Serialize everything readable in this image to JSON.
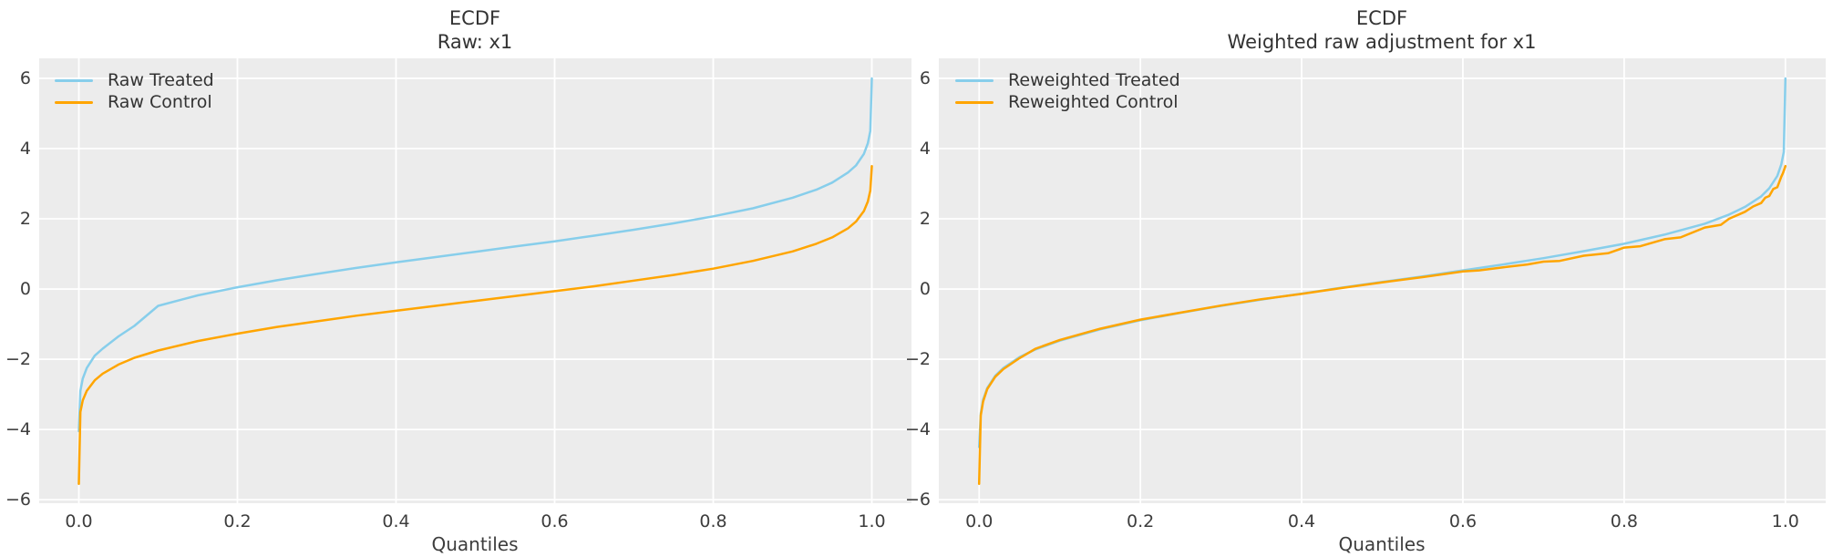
{
  "figure": {
    "background": "#ffffff",
    "plot_background": "#ececec",
    "grid_color": "#ffffff",
    "text_color": "#3d3d3d",
    "treated_color": "#87ceeb",
    "control_color": "#ffa500"
  },
  "chart_data": [
    {
      "type": "line",
      "title_line1": "ECDF",
      "title_line2": "Raw: x1",
      "xlabel": "Quantiles",
      "x_ticks": [
        {
          "label": "0.0",
          "value": 0.0
        },
        {
          "label": "0.2",
          "value": 0.2
        },
        {
          "label": "0.4",
          "value": 0.4
        },
        {
          "label": "0.6",
          "value": 0.6
        },
        {
          "label": "0.8",
          "value": 0.8
        },
        {
          "label": "1.0",
          "value": 1.0
        }
      ],
      "y_ticks": [
        {
          "label": "6",
          "value": 6
        },
        {
          "label": "4",
          "value": 4
        },
        {
          "label": "2",
          "value": 2
        },
        {
          "label": "0",
          "value": 0
        },
        {
          "label": "−2",
          "value": -2
        },
        {
          "label": "−4",
          "value": -4
        },
        {
          "label": "−6",
          "value": -6
        }
      ],
      "xlim": [
        -0.05,
        1.05
      ],
      "ylim": [
        -6.1,
        6.57
      ],
      "grid": true,
      "legend_position": "upper-left",
      "series": [
        {
          "name": "Raw Treated",
          "color": "#87ceeb",
          "points": [
            [
              0.0,
              -4.05
            ],
            [
              0.002,
              -2.9
            ],
            [
              0.005,
              -2.55
            ],
            [
              0.01,
              -2.25
            ],
            [
              0.02,
              -1.9
            ],
            [
              0.03,
              -1.7
            ],
            [
              0.05,
              -1.35
            ],
            [
              0.07,
              -1.05
            ],
            [
              0.1,
              -0.48
            ],
            [
              0.13,
              -0.3
            ],
            [
              0.15,
              -0.18
            ],
            [
              0.2,
              0.05
            ],
            [
              0.25,
              0.25
            ],
            [
              0.3,
              0.43
            ],
            [
              0.35,
              0.6
            ],
            [
              0.4,
              0.76
            ],
            [
              0.45,
              0.91
            ],
            [
              0.5,
              1.06
            ],
            [
              0.55,
              1.21
            ],
            [
              0.6,
              1.36
            ],
            [
              0.65,
              1.52
            ],
            [
              0.7,
              1.69
            ],
            [
              0.75,
              1.87
            ],
            [
              0.8,
              2.07
            ],
            [
              0.85,
              2.3
            ],
            [
              0.9,
              2.6
            ],
            [
              0.93,
              2.83
            ],
            [
              0.95,
              3.03
            ],
            [
              0.97,
              3.32
            ],
            [
              0.98,
              3.52
            ],
            [
              0.99,
              3.85
            ],
            [
              0.995,
              4.15
            ],
            [
              0.998,
              4.5
            ],
            [
              1.0,
              6.0
            ]
          ]
        },
        {
          "name": "Raw Control",
          "color": "#ffa500",
          "points": [
            [
              0.0,
              -5.55
            ],
            [
              0.002,
              -3.5
            ],
            [
              0.005,
              -3.17
            ],
            [
              0.01,
              -2.9
            ],
            [
              0.02,
              -2.6
            ],
            [
              0.03,
              -2.41
            ],
            [
              0.05,
              -2.15
            ],
            [
              0.07,
              -1.96
            ],
            [
              0.1,
              -1.75
            ],
            [
              0.15,
              -1.48
            ],
            [
              0.2,
              -1.27
            ],
            [
              0.25,
              -1.08
            ],
            [
              0.3,
              -0.92
            ],
            [
              0.35,
              -0.76
            ],
            [
              0.4,
              -0.62
            ],
            [
              0.45,
              -0.48
            ],
            [
              0.5,
              -0.34
            ],
            [
              0.55,
              -0.2
            ],
            [
              0.6,
              -0.06
            ],
            [
              0.65,
              0.08
            ],
            [
              0.7,
              0.24
            ],
            [
              0.75,
              0.4
            ],
            [
              0.8,
              0.58
            ],
            [
              0.85,
              0.8
            ],
            [
              0.9,
              1.07
            ],
            [
              0.93,
              1.29
            ],
            [
              0.95,
              1.47
            ],
            [
              0.97,
              1.73
            ],
            [
              0.98,
              1.92
            ],
            [
              0.99,
              2.22
            ],
            [
              0.995,
              2.49
            ],
            [
              0.998,
              2.8
            ],
            [
              1.0,
              3.5
            ]
          ]
        }
      ]
    },
    {
      "type": "line",
      "title_line1": "ECDF",
      "title_line2": "Weighted raw adjustment for x1",
      "xlabel": "Quantiles",
      "x_ticks": [
        {
          "label": "0.0",
          "value": 0.0
        },
        {
          "label": "0.2",
          "value": 0.2
        },
        {
          "label": "0.4",
          "value": 0.4
        },
        {
          "label": "0.6",
          "value": 0.6
        },
        {
          "label": "0.8",
          "value": 0.8
        },
        {
          "label": "1.0",
          "value": 1.0
        }
      ],
      "y_ticks": [
        {
          "label": "6",
          "value": 6
        },
        {
          "label": "4",
          "value": 4
        },
        {
          "label": "2",
          "value": 2
        },
        {
          "label": "0",
          "value": 0
        },
        {
          "label": "−2",
          "value": -2
        },
        {
          "label": "−4",
          "value": -4
        },
        {
          "label": "−6",
          "value": -6
        }
      ],
      "xlim": [
        -0.05,
        1.05
      ],
      "ylim": [
        -6.1,
        6.57
      ],
      "grid": true,
      "legend_position": "upper-left",
      "series": [
        {
          "name": "Reweighted Treated",
          "color": "#87ceeb",
          "points": [
            [
              0.0,
              -4.5
            ],
            [
              0.002,
              -3.54
            ],
            [
              0.005,
              -3.15
            ],
            [
              0.01,
              -2.82
            ],
            [
              0.02,
              -2.47
            ],
            [
              0.03,
              -2.25
            ],
            [
              0.05,
              -1.94
            ],
            [
              0.07,
              -1.72
            ],
            [
              0.1,
              -1.47
            ],
            [
              0.15,
              -1.15
            ],
            [
              0.2,
              -0.89
            ],
            [
              0.25,
              -0.68
            ],
            [
              0.3,
              -0.48
            ],
            [
              0.35,
              -0.3
            ],
            [
              0.4,
              -0.13
            ],
            [
              0.45,
              0.04
            ],
            [
              0.5,
              0.2
            ],
            [
              0.55,
              0.36
            ],
            [
              0.6,
              0.53
            ],
            [
              0.65,
              0.7
            ],
            [
              0.7,
              0.88
            ],
            [
              0.75,
              1.08
            ],
            [
              0.8,
              1.29
            ],
            [
              0.85,
              1.55
            ],
            [
              0.9,
              1.86
            ],
            [
              0.93,
              2.12
            ],
            [
              0.95,
              2.34
            ],
            [
              0.97,
              2.64
            ],
            [
              0.98,
              2.87
            ],
            [
              0.99,
              3.22
            ],
            [
              0.995,
              3.55
            ],
            [
              0.998,
              3.9
            ],
            [
              1.0,
              6.0
            ]
          ]
        },
        {
          "name": "Reweighted Control",
          "color": "#ffa500",
          "points": [
            [
              0.0,
              -5.55
            ],
            [
              0.002,
              -3.6
            ],
            [
              0.005,
              -3.2
            ],
            [
              0.01,
              -2.85
            ],
            [
              0.02,
              -2.5
            ],
            [
              0.03,
              -2.28
            ],
            [
              0.05,
              -1.97
            ],
            [
              0.07,
              -1.7
            ],
            [
              0.1,
              -1.45
            ],
            [
              0.15,
              -1.13
            ],
            [
              0.2,
              -0.87
            ],
            [
              0.25,
              -0.67
            ],
            [
              0.3,
              -0.47
            ],
            [
              0.35,
              -0.29
            ],
            [
              0.4,
              -0.14
            ],
            [
              0.45,
              0.03
            ],
            [
              0.5,
              0.19
            ],
            [
              0.55,
              0.34
            ],
            [
              0.6,
              0.5
            ],
            [
              0.62,
              0.53
            ],
            [
              0.65,
              0.62
            ],
            [
              0.68,
              0.7
            ],
            [
              0.7,
              0.78
            ],
            [
              0.72,
              0.8
            ],
            [
              0.75,
              0.95
            ],
            [
              0.78,
              1.02
            ],
            [
              0.8,
              1.18
            ],
            [
              0.82,
              1.22
            ],
            [
              0.85,
              1.42
            ],
            [
              0.87,
              1.47
            ],
            [
              0.9,
              1.75
            ],
            [
              0.92,
              1.83
            ],
            [
              0.93,
              2.0
            ],
            [
              0.95,
              2.2
            ],
            [
              0.96,
              2.35
            ],
            [
              0.97,
              2.45
            ],
            [
              0.975,
              2.6
            ],
            [
              0.98,
              2.65
            ],
            [
              0.985,
              2.85
            ],
            [
              0.99,
              2.9
            ],
            [
              0.995,
              3.2
            ],
            [
              0.997,
              3.3
            ],
            [
              1.0,
              3.5
            ]
          ]
        }
      ]
    }
  ],
  "layout_note_panels": [
    "raw",
    "weighted"
  ]
}
